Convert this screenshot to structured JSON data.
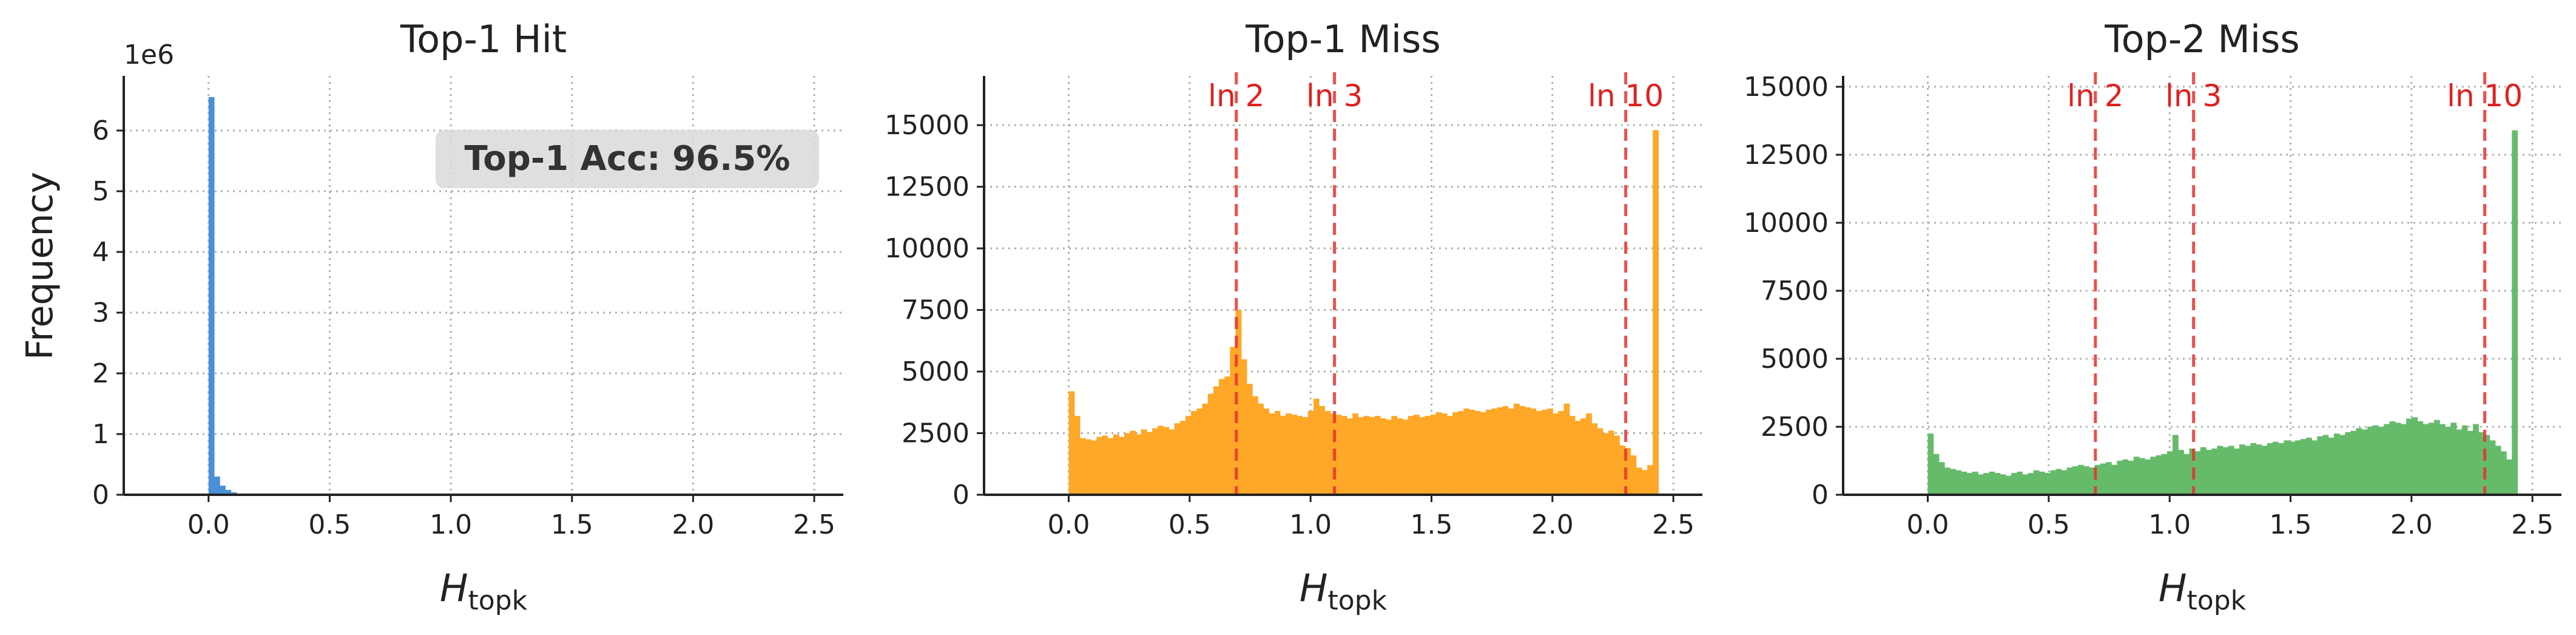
{
  "figure": {
    "ylabel": "Frequency",
    "offset_text": "1e6"
  },
  "chart_data": [
    {
      "type": "bar",
      "title": "Top-1 Hit",
      "xlabel_main": "H",
      "xlabel_sub": "topk",
      "ylabel": "Frequency",
      "xlim": [
        -0.35,
        2.62
      ],
      "ylim": [
        0,
        6900000
      ],
      "xticks": [
        0.0,
        0.5,
        1.0,
        1.5,
        2.0,
        2.5
      ],
      "xtick_labels": [
        "0.0",
        "0.5",
        "1.0",
        "1.5",
        "2.0",
        "2.5"
      ],
      "yticks": [
        0,
        1000000,
        2000000,
        3000000,
        4000000,
        5000000,
        6000000
      ],
      "ytick_labels": [
        "0",
        "1",
        "2",
        "3",
        "4",
        "5",
        "6"
      ],
      "y_offset_text": "1e6",
      "color": "#4a90d9",
      "bin_width": 0.023,
      "bin_start": 0.0,
      "values": [
        6550000,
        300000,
        150000,
        80000,
        40000,
        20000,
        10000,
        5000
      ],
      "annotation": "Top-1 Acc: 96.5%",
      "grid": true,
      "vlines": []
    },
    {
      "type": "bar",
      "title": "Top-1 Miss",
      "xlabel_main": "H",
      "xlabel_sub": "topk",
      "xlim": [
        -0.35,
        2.62
      ],
      "ylim": [
        0,
        17000
      ],
      "xticks": [
        0.0,
        0.5,
        1.0,
        1.5,
        2.0,
        2.5
      ],
      "xtick_labels": [
        "0.0",
        "0.5",
        "1.0",
        "1.5",
        "2.0",
        "2.5"
      ],
      "yticks": [
        0,
        2500,
        5000,
        7500,
        10000,
        12500,
        15000
      ],
      "ytick_labels": [
        "0",
        "2500",
        "5000",
        "7500",
        "10000",
        "12500",
        "15000"
      ],
      "color": "#ffa726",
      "bin_width": 0.023,
      "bin_start": 0.0,
      "values": [
        4200,
        3200,
        2300,
        2250,
        2200,
        2350,
        2400,
        2300,
        2450,
        2350,
        2500,
        2600,
        2450,
        2650,
        2550,
        2700,
        2800,
        2750,
        2650,
        2900,
        3000,
        3200,
        3400,
        3500,
        3700,
        4100,
        4400,
        4700,
        4800,
        6000,
        7500,
        5500,
        4500,
        4000,
        3700,
        3500,
        3300,
        3400,
        3200,
        3300,
        3250,
        3200,
        3150,
        3400,
        3900,
        3600,
        3400,
        3300,
        3250,
        3200,
        3100,
        3300,
        3150,
        3200,
        3150,
        3200,
        3100,
        3050,
        3200,
        3100,
        3050,
        3200,
        3250,
        3150,
        3200,
        3250,
        3350,
        3300,
        3200,
        3350,
        3400,
        3500,
        3450,
        3400,
        3350,
        3450,
        3500,
        3550,
        3600,
        3500,
        3700,
        3600,
        3550,
        3500,
        3400,
        3450,
        3500,
        3300,
        3400,
        3700,
        3200,
        3000,
        3100,
        3300,
        2900,
        2700,
        2500,
        2600,
        2400,
        2000,
        1900,
        1600,
        1100,
        1000,
        1200,
        14800
      ],
      "grid": true,
      "vlines": [
        {
          "x": 0.693,
          "label": "ln 2"
        },
        {
          "x": 1.099,
          "label": "ln 3"
        },
        {
          "x": 2.303,
          "label": "ln 10"
        }
      ]
    },
    {
      "type": "bar",
      "title": "Top-2 Miss",
      "xlabel_main": "H",
      "xlabel_sub": "topk",
      "xlim": [
        -0.35,
        2.62
      ],
      "ylim": [
        0,
        15400
      ],
      "xticks": [
        0.0,
        0.5,
        1.0,
        1.5,
        2.0,
        2.5
      ],
      "xtick_labels": [
        "0.0",
        "0.5",
        "1.0",
        "1.5",
        "2.0",
        "2.5"
      ],
      "yticks": [
        0,
        2500,
        5000,
        7500,
        10000,
        12500,
        15000
      ],
      "ytick_labels": [
        "0",
        "2500",
        "5000",
        "7500",
        "10000",
        "12500",
        "15000"
      ],
      "color": "#66bb6a",
      "bin_width": 0.023,
      "bin_start": 0.0,
      "values": [
        2250,
        1500,
        1200,
        1000,
        950,
        900,
        850,
        800,
        850,
        750,
        800,
        850,
        800,
        750,
        700,
        800,
        850,
        750,
        800,
        900,
        850,
        800,
        900,
        950,
        900,
        1000,
        1050,
        1100,
        1050,
        1000,
        1100,
        1150,
        1200,
        1100,
        1250,
        1300,
        1250,
        1400,
        1350,
        1300,
        1400,
        1450,
        1500,
        1600,
        2200,
        1650,
        1500,
        1700,
        1600,
        1750,
        1650,
        1700,
        1800,
        1750,
        1800,
        1700,
        1850,
        1800,
        1900,
        1850,
        1800,
        1900,
        1950,
        1900,
        2000,
        1950,
        2000,
        2050,
        2100,
        2000,
        2150,
        2200,
        2100,
        2250,
        2200,
        2300,
        2350,
        2450,
        2400,
        2500,
        2550,
        2500,
        2600,
        2700,
        2650,
        2600,
        2800,
        2850,
        2700,
        2600,
        2650,
        2750,
        2600,
        2500,
        2650,
        2400,
        2550,
        2350,
        2600,
        2300,
        2200,
        2000,
        1800,
        1600,
        1300,
        13400
      ],
      "grid": true,
      "vlines": [
        {
          "x": 0.693,
          "label": "ln 2"
        },
        {
          "x": 1.099,
          "label": "ln 3"
        },
        {
          "x": 2.303,
          "label": "ln 10"
        }
      ]
    }
  ]
}
